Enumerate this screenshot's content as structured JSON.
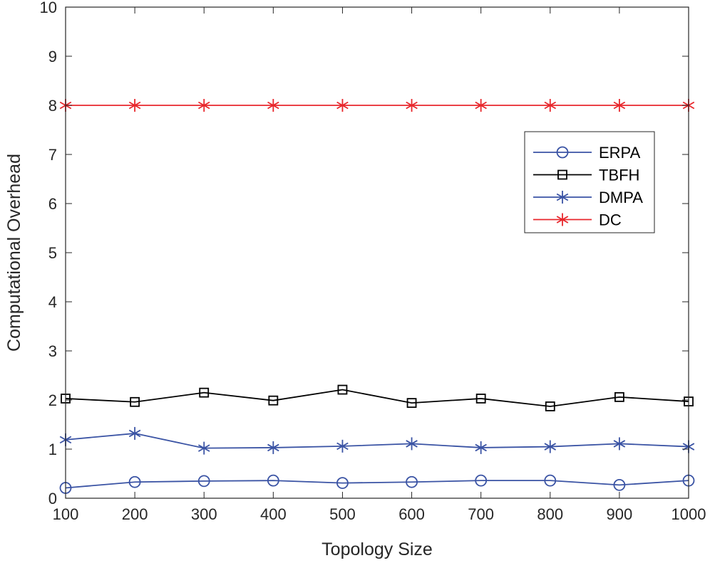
{
  "chart_data": {
    "type": "line",
    "title": "",
    "xlabel": "Topology Size",
    "ylabel": "Computational Overhead",
    "x": [
      100,
      200,
      300,
      400,
      500,
      600,
      700,
      800,
      900,
      1000
    ],
    "xlim": [
      100,
      1000
    ],
    "ylim": [
      0,
      10
    ],
    "x_ticks": [
      "100",
      "200",
      "300",
      "400",
      "500",
      "600",
      "700",
      "800",
      "900",
      "1000"
    ],
    "y_ticks": [
      "0",
      "1",
      "2",
      "3",
      "4",
      "5",
      "6",
      "7",
      "8",
      "9",
      "10"
    ],
    "grid": false,
    "legend_position": "upper-right",
    "series": [
      {
        "name": "ERPA",
        "marker": "circle",
        "color": "#3a53a4",
        "values": [
          0.21,
          0.33,
          0.35,
          0.36,
          0.31,
          0.33,
          0.36,
          0.36,
          0.27,
          0.36
        ]
      },
      {
        "name": "TBFH",
        "marker": "square",
        "color": "#000000",
        "values": [
          2.03,
          1.96,
          2.15,
          1.99,
          2.21,
          1.94,
          2.03,
          1.87,
          2.06,
          1.97
        ]
      },
      {
        "name": "DMPA",
        "marker": "asterisk",
        "color": "#3a53a4",
        "values": [
          1.19,
          1.32,
          1.02,
          1.03,
          1.06,
          1.11,
          1.03,
          1.05,
          1.11,
          1.05
        ]
      },
      {
        "name": "DC",
        "marker": "asterisk",
        "color": "#e8262b",
        "values": [
          8,
          8,
          8,
          8,
          8,
          8,
          8,
          8,
          8,
          8
        ]
      }
    ]
  }
}
